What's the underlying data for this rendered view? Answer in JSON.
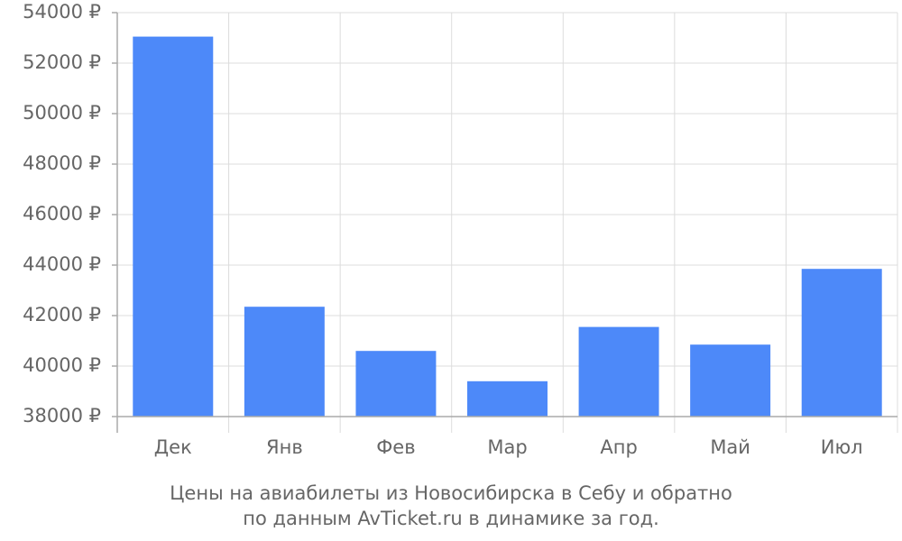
{
  "chart_data": {
    "type": "bar",
    "title": "Цены на авиабилеты из Новосибирска в Себу и обратно",
    "subtitle": "по данным AvTicket.ru в динамике за год.",
    "categories": [
      "Дек",
      "Янв",
      "Фев",
      "Мар",
      "Апр",
      "Май",
      "Июл"
    ],
    "values": [
      53050,
      42350,
      40600,
      39400,
      41550,
      40850,
      43850
    ],
    "color": "#4d89f9",
    "ylim": [
      38000,
      54000
    ],
    "yticks": [
      {
        "value": 38000,
        "label": "38000 ₽"
      },
      {
        "value": 40000,
        "label": "40000 ₽"
      },
      {
        "value": 42000,
        "label": "42000 ₽"
      },
      {
        "value": 44000,
        "label": "44000 ₽"
      },
      {
        "value": 46000,
        "label": "46000 ₽"
      },
      {
        "value": 48000,
        "label": "48000 ₽"
      },
      {
        "value": 50000,
        "label": "50000 ₽"
      },
      {
        "value": 52000,
        "label": "52000 ₽"
      },
      {
        "value": 54000,
        "label": "54000 ₽"
      }
    ],
    "grid": true
  }
}
